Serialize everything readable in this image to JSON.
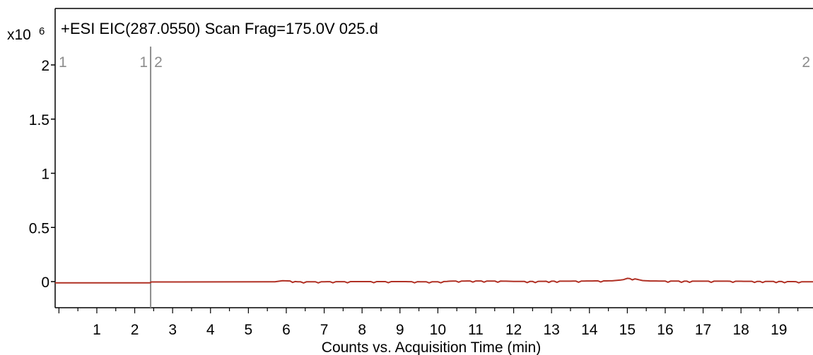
{
  "chart_data": {
    "type": "line",
    "title": "+ESI EIC(287.0550) Scan Frag=175.0V 025.d",
    "xlabel": "Counts vs. Acquisition Time (min)",
    "ylabel": "",
    "y_multiplier": {
      "base": "x10",
      "exponent": "6"
    },
    "xlim": [
      -0.1,
      19.9
    ],
    "ylim": [
      -0.24,
      2.13
    ],
    "x_ticks": [
      1,
      2,
      3,
      4,
      5,
      6,
      7,
      8,
      9,
      10,
      11,
      12,
      13,
      14,
      15,
      16,
      17,
      18,
      19
    ],
    "x_tick_labels": [
      "1",
      "2",
      "3",
      "4",
      "5",
      "6",
      "7",
      "8",
      "9",
      "10",
      "11",
      "12",
      "13",
      "14",
      "15",
      "16",
      "17",
      "18",
      "19"
    ],
    "y_ticks": [
      0,
      0.5,
      1,
      1.5,
      2
    ],
    "y_tick_labels": [
      "0",
      "0.5",
      "1",
      "1.5",
      "2"
    ],
    "grid": false,
    "line_color": "#b03024",
    "segment_marker_color": "#8c8c8c",
    "segment_boundary_x": 2.42,
    "segment_labels": [
      {
        "text": "1",
        "x": -0.1,
        "anchor": "start"
      },
      {
        "text": "1",
        "x": 2.42,
        "anchor": "end"
      },
      {
        "text": "2",
        "x": 2.42,
        "anchor": "start"
      },
      {
        "text": "2",
        "x": 19.9,
        "anchor": "end"
      }
    ],
    "series": [
      {
        "values_x": [
          -0.1,
          2.4,
          2.44,
          5.7,
          5.9,
          6.1,
          6.3,
          7.0,
          8.0,
          9.0,
          10.0,
          10.4,
          11.0,
          11.8,
          12.0,
          12.5,
          13.0,
          13.5,
          14.0,
          14.6,
          14.9,
          15.0,
          15.2,
          15.4,
          15.6,
          16.0,
          16.5,
          17.0,
          17.5,
          18.0,
          18.5,
          19.0,
          19.9
        ],
        "values_y": [
          -0.012,
          -0.012,
          -0.003,
          -0.002,
          0.008,
          0.006,
          -0.002,
          -0.001,
          0.0,
          0.0,
          -0.002,
          0.005,
          0.006,
          0.004,
          0.002,
          0.001,
          0.004,
          0.004,
          0.006,
          0.007,
          0.018,
          0.03,
          0.025,
          0.01,
          0.006,
          0.005,
          0.004,
          0.004,
          0.004,
          0.003,
          0.002,
          0.001,
          -0.002
        ]
      }
    ]
  }
}
